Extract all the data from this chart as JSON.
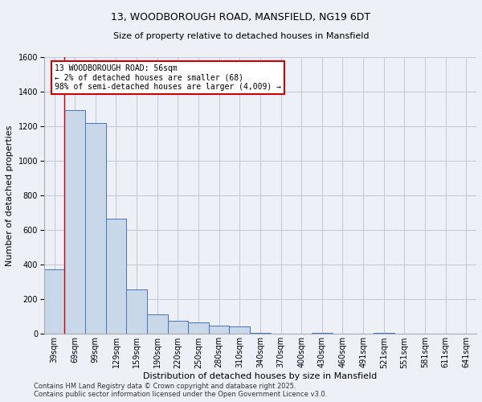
{
  "title_line1": "13, WOODBOROUGH ROAD, MANSFIELD, NG19 6DT",
  "title_line2": "Size of property relative to detached houses in Mansfield",
  "xlabel": "Distribution of detached houses by size in Mansfield",
  "ylabel": "Number of detached properties",
  "categories": [
    "39sqm",
    "69sqm",
    "99sqm",
    "129sqm",
    "159sqm",
    "190sqm",
    "220sqm",
    "250sqm",
    "280sqm",
    "310sqm",
    "340sqm",
    "370sqm",
    "400sqm",
    "430sqm",
    "460sqm",
    "491sqm",
    "521sqm",
    "551sqm",
    "581sqm",
    "611sqm",
    "641sqm"
  ],
  "values": [
    375,
    1295,
    1220,
    665,
    255,
    115,
    75,
    65,
    50,
    45,
    5,
    0,
    0,
    5,
    0,
    0,
    5,
    0,
    0,
    0,
    0
  ],
  "bar_color": "#c8d8e8",
  "bar_edge_color": "#4472c4",
  "grid_color": "#c0c8d8",
  "background_color": "#eef0f8",
  "annotation_box_text": "13 WOODBOROUGH ROAD: 56sqm\n← 2% of detached houses are smaller (68)\n98% of semi-detached houses are larger (4,009) →",
  "annotation_box_color": "#ffffff",
  "annotation_box_edge_color": "#cc0000",
  "vline_x": 0.5,
  "ylim": [
    0,
    1600
  ],
  "yticks": [
    0,
    200,
    400,
    600,
    800,
    1000,
    1200,
    1400,
    1600
  ],
  "footer_line1": "Contains HM Land Registry data © Crown copyright and database right 2025.",
  "footer_line2": "Contains public sector information licensed under the Open Government Licence v3.0.",
  "title_fontsize": 9,
  "subtitle_fontsize": 8,
  "xlabel_fontsize": 8,
  "ylabel_fontsize": 8,
  "tick_fontsize": 7,
  "annotation_fontsize": 7,
  "footer_fontsize": 6
}
